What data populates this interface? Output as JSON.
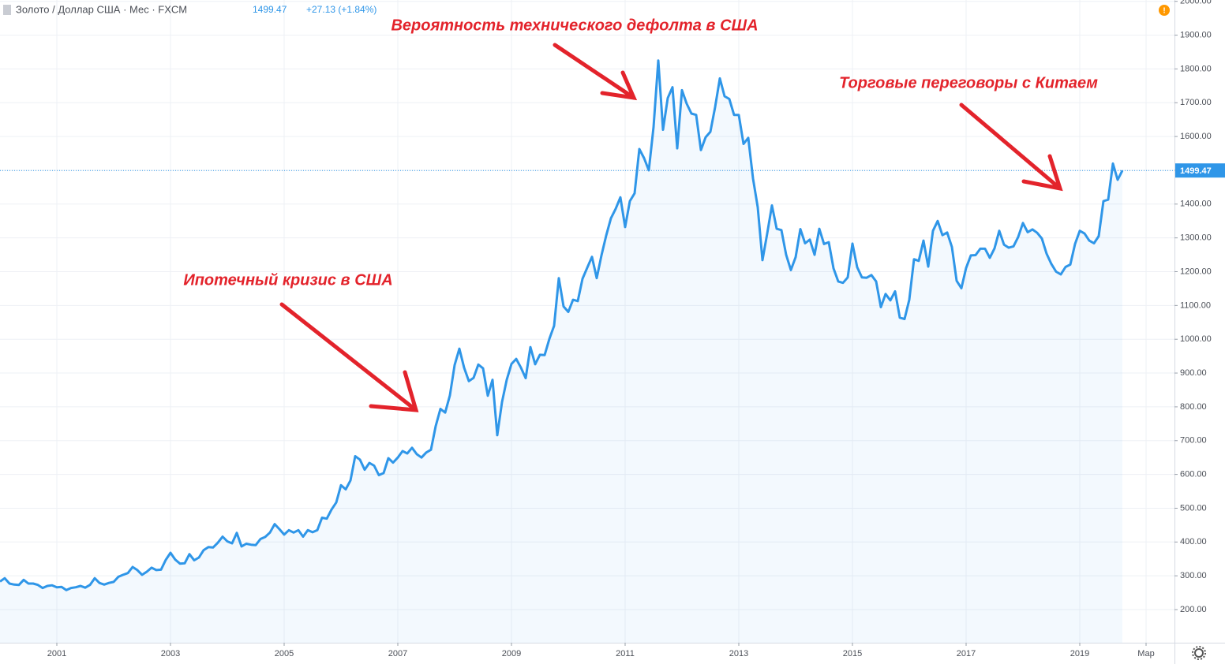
{
  "chart_data": {
    "type": "area-line",
    "header": "Золото / Доллар США · Мес · FXCM",
    "change": "+27.13 (+1.84%)",
    "annotations": [
      "Вероятность технического дефолта в США",
      "Торговые переговоры с Китаем",
      "Ипотечный кризис в США"
    ],
    "ylim": [
      102,
      2004
    ],
    "yticks": [
      {
        "value": 200,
        "label": "200.00"
      },
      {
        "value": 300,
        "label": "300.00"
      },
      {
        "value": 400,
        "label": "400.00"
      },
      {
        "value": 500,
        "label": "500.00"
      },
      {
        "value": 600,
        "label": "600.00"
      },
      {
        "value": 700,
        "label": "700.00"
      },
      {
        "value": 800,
        "label": "800.00"
      },
      {
        "value": 900,
        "label": "900.00"
      },
      {
        "value": 1000,
        "label": "1000.00"
      },
      {
        "value": 1100,
        "label": "1100.00"
      },
      {
        "value": 1200,
        "label": "1200.00"
      },
      {
        "value": 1300,
        "label": "1300.00"
      },
      {
        "value": 1400,
        "label": "1400.00"
      },
      {
        "value": 1500,
        "label": "1500.00"
      },
      {
        "value": 1600,
        "label": "1600.00"
      },
      {
        "value": 1700,
        "label": "1700.00"
      },
      {
        "value": 1800,
        "label": "1800.00"
      },
      {
        "value": 1900,
        "label": "1900.00"
      },
      {
        "value": 2000,
        "label": "2000.00"
      }
    ],
    "xlim": [
      "2000-01",
      "2020-09"
    ],
    "xticks": [
      {
        "value": "2001-01",
        "label": "2001"
      },
      {
        "value": "2003-01",
        "label": "2003"
      },
      {
        "value": "2005-01",
        "label": "2005"
      },
      {
        "value": "2007-01",
        "label": "2007"
      },
      {
        "value": "2009-01",
        "label": "2009"
      },
      {
        "value": "2011-01",
        "label": "2011"
      },
      {
        "value": "2013-01",
        "label": "2013"
      },
      {
        "value": "2015-01",
        "label": "2015"
      },
      {
        "value": "2017-01",
        "label": "2017"
      },
      {
        "value": "2019-01",
        "label": "2019"
      },
      {
        "value": "2020-03",
        "label": "Мар"
      }
    ],
    "grid": true,
    "x": [
      "2000-01",
      "2000-02",
      "2000-03",
      "2000-04",
      "2000-05",
      "2000-06",
      "2000-07",
      "2000-08",
      "2000-09",
      "2000-10",
      "2000-11",
      "2000-12",
      "2001-01",
      "2001-02",
      "2001-03",
      "2001-04",
      "2001-05",
      "2001-06",
      "2001-07",
      "2001-08",
      "2001-09",
      "2001-10",
      "2001-11",
      "2001-12",
      "2002-01",
      "2002-02",
      "2002-03",
      "2002-04",
      "2002-05",
      "2002-06",
      "2002-07",
      "2002-08",
      "2002-09",
      "2002-10",
      "2002-11",
      "2002-12",
      "2003-01",
      "2003-02",
      "2003-03",
      "2003-04",
      "2003-05",
      "2003-06",
      "2003-07",
      "2003-08",
      "2003-09",
      "2003-10",
      "2003-11",
      "2003-12",
      "2004-01",
      "2004-02",
      "2004-03",
      "2004-04",
      "2004-05",
      "2004-06",
      "2004-07",
      "2004-08",
      "2004-09",
      "2004-10",
      "2004-11",
      "2004-12",
      "2005-01",
      "2005-02",
      "2005-03",
      "2005-04",
      "2005-05",
      "2005-06",
      "2005-07",
      "2005-08",
      "2005-09",
      "2005-10",
      "2005-11",
      "2005-12",
      "2006-01",
      "2006-02",
      "2006-03",
      "2006-04",
      "2006-05",
      "2006-06",
      "2006-07",
      "2006-08",
      "2006-09",
      "2006-10",
      "2006-11",
      "2006-12",
      "2007-01",
      "2007-02",
      "2007-03",
      "2007-04",
      "2007-05",
      "2007-06",
      "2007-07",
      "2007-08",
      "2007-09",
      "2007-10",
      "2007-11",
      "2007-12",
      "2008-01",
      "2008-02",
      "2008-03",
      "2008-04",
      "2008-05",
      "2008-06",
      "2008-07",
      "2008-08",
      "2008-09",
      "2008-10",
      "2008-11",
      "2008-12",
      "2009-01",
      "2009-02",
      "2009-03",
      "2009-04",
      "2009-05",
      "2009-06",
      "2009-07",
      "2009-08",
      "2009-09",
      "2009-10",
      "2009-11",
      "2009-12",
      "2010-01",
      "2010-02",
      "2010-03",
      "2010-04",
      "2010-05",
      "2010-06",
      "2010-07",
      "2010-08",
      "2010-09",
      "2010-10",
      "2010-11",
      "2010-12",
      "2011-01",
      "2011-02",
      "2011-03",
      "2011-04",
      "2011-05",
      "2011-06",
      "2011-07",
      "2011-08",
      "2011-09",
      "2011-10",
      "2011-11",
      "2011-12",
      "2012-01",
      "2012-02",
      "2012-03",
      "2012-04",
      "2012-05",
      "2012-06",
      "2012-07",
      "2012-08",
      "2012-09",
      "2012-10",
      "2012-11",
      "2012-12",
      "2013-01",
      "2013-02",
      "2013-03",
      "2013-04",
      "2013-05",
      "2013-06",
      "2013-07",
      "2013-08",
      "2013-09",
      "2013-10",
      "2013-11",
      "2013-12",
      "2014-01",
      "2014-02",
      "2014-03",
      "2014-04",
      "2014-05",
      "2014-06",
      "2014-07",
      "2014-08",
      "2014-09",
      "2014-10",
      "2014-11",
      "2014-12",
      "2015-01",
      "2015-02",
      "2015-03",
      "2015-04",
      "2015-05",
      "2015-06",
      "2015-07",
      "2015-08",
      "2015-09",
      "2015-10",
      "2015-11",
      "2015-12",
      "2016-01",
      "2016-02",
      "2016-03",
      "2016-04",
      "2016-05",
      "2016-06",
      "2016-07",
      "2016-08",
      "2016-09",
      "2016-10",
      "2016-11",
      "2016-12",
      "2017-01",
      "2017-02",
      "2017-03",
      "2017-04",
      "2017-05",
      "2017-06",
      "2017-07",
      "2017-08",
      "2017-09",
      "2017-10",
      "2017-11",
      "2017-12",
      "2018-01",
      "2018-02",
      "2018-03",
      "2018-04",
      "2018-05",
      "2018-06",
      "2018-07",
      "2018-08",
      "2018-09",
      "2018-10",
      "2018-11",
      "2018-12",
      "2019-01",
      "2019-02",
      "2019-03",
      "2019-04",
      "2019-05",
      "2019-06",
      "2019-07",
      "2019-08",
      "2019-09",
      "2019-10"
    ],
    "series": [
      {
        "name": "Золото / Доллар США",
        "color": "#2f96e8",
        "values": [
          283,
          293,
          277,
          274,
          273,
          288,
          277,
          277,
          273,
          264,
          270,
          272,
          266,
          267,
          258,
          264,
          266,
          270,
          265,
          273,
          293,
          279,
          274,
          279,
          282,
          297,
          303,
          308,
          326,
          317,
          303,
          312,
          324,
          317,
          318,
          347,
          368,
          348,
          336,
          337,
          364,
          346,
          354,
          376,
          385,
          384,
          398,
          416,
          402,
          396,
          427,
          387,
          395,
          392,
          391,
          409,
          415,
          428,
          453,
          438,
          422,
          435,
          428,
          435,
          416,
          435,
          429,
          435,
          472,
          469,
          496,
          517,
          568,
          556,
          582,
          654,
          644,
          614,
          634,
          626,
          598,
          604,
          648,
          635,
          650,
          669,
          662,
          679,
          660,
          650,
          665,
          673,
          743,
          794,
          783,
          834,
          924,
          972,
          916,
          876,
          886,
          925,
          914,
          833,
          880,
          716,
          814,
          880,
          927,
          942,
          916,
          885,
          977,
          926,
          954,
          953,
          1001,
          1040,
          1181,
          1097,
          1081,
          1117,
          1113,
          1179,
          1212,
          1244,
          1181,
          1248,
          1307,
          1358,
          1386,
          1420,
          1332,
          1409,
          1432,
          1563,
          1536,
          1500,
          1628,
          1825,
          1620,
          1714,
          1746,
          1565,
          1737,
          1697,
          1668,
          1664,
          1560,
          1598,
          1614,
          1687,
          1772,
          1719,
          1711,
          1664,
          1664,
          1578,
          1596,
          1476,
          1391,
          1234,
          1313,
          1396,
          1327,
          1323,
          1250,
          1205,
          1243,
          1326,
          1284,
          1295,
          1250,
          1327,
          1282,
          1287,
          1210,
          1171,
          1167,
          1183,
          1283,
          1213,
          1183,
          1182,
          1190,
          1171,
          1095,
          1134,
          1115,
          1142,
          1064,
          1060,
          1117,
          1237,
          1232,
          1292,
          1215,
          1321,
          1350,
          1308,
          1316,
          1273,
          1173,
          1151,
          1211,
          1248,
          1249,
          1268,
          1268,
          1241,
          1269,
          1321,
          1280,
          1271,
          1275,
          1303,
          1344,
          1317,
          1325,
          1315,
          1298,
          1253,
          1223,
          1200,
          1192,
          1214,
          1221,
          1282,
          1321,
          1313,
          1292,
          1284,
          1305,
          1409,
          1413,
          1520,
          1472,
          1499.47
        ]
      }
    ]
  }
}
